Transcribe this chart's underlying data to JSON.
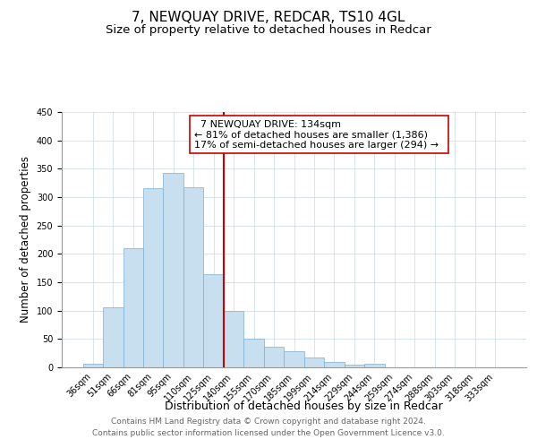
{
  "title": "7, NEWQUAY DRIVE, REDCAR, TS10 4GL",
  "subtitle": "Size of property relative to detached houses in Redcar",
  "xlabel": "Distribution of detached houses by size in Redcar",
  "ylabel": "Number of detached properties",
  "bar_labels": [
    "36sqm",
    "51sqm",
    "66sqm",
    "81sqm",
    "95sqm",
    "110sqm",
    "125sqm",
    "140sqm",
    "155sqm",
    "170sqm",
    "185sqm",
    "199sqm",
    "214sqm",
    "229sqm",
    "244sqm",
    "259sqm",
    "274sqm",
    "288sqm",
    "303sqm",
    "318sqm",
    "333sqm"
  ],
  "bar_heights": [
    7,
    106,
    210,
    316,
    342,
    318,
    165,
    99,
    50,
    36,
    29,
    18,
    9,
    4,
    6,
    0,
    0,
    0,
    0,
    0,
    0
  ],
  "bar_color": "#c8dff0",
  "bar_edge_color": "#7aaed4",
  "vline_color": "#cc0000",
  "ylim": [
    0,
    450
  ],
  "yticks": [
    0,
    50,
    100,
    150,
    200,
    250,
    300,
    350,
    400,
    450
  ],
  "annotation_title": "7 NEWQUAY DRIVE: 134sqm",
  "annotation_line1": "← 81% of detached houses are smaller (1,386)",
  "annotation_line2": "17% of semi-detached houses are larger (294) →",
  "annotation_box_color": "#ffffff",
  "annotation_box_edge": "#cc0000",
  "footer_line1": "Contains HM Land Registry data © Crown copyright and database right 2024.",
  "footer_line2": "Contains public sector information licensed under the Open Government Licence v3.0.",
  "title_fontsize": 11,
  "subtitle_fontsize": 9.5,
  "xlabel_fontsize": 9,
  "ylabel_fontsize": 8.5,
  "annotation_fontsize": 8,
  "tick_fontsize": 7,
  "footer_fontsize": 6.5,
  "vline_index": 7
}
